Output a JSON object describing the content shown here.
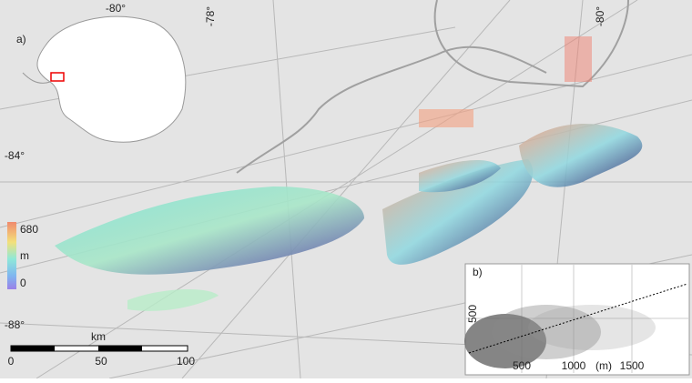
{
  "map": {
    "panel_label": "a)",
    "graticule": {
      "lon_top_left": "-80°",
      "lon_top_mid": "-78°",
      "lon_top_right": "-80°",
      "lat_upper": "-84°",
      "lat_lower": "-88°"
    },
    "colorbar": {
      "max": "680",
      "unit": "m",
      "min": "0"
    },
    "scalebar": {
      "unit": "km",
      "ticks": [
        "0",
        "50",
        "100"
      ]
    }
  },
  "inset": {
    "panel_label": "b)",
    "y_tick": "500",
    "x_ticks": [
      "500",
      "1000",
      "1500"
    ],
    "x_unit": "(m)"
  }
}
